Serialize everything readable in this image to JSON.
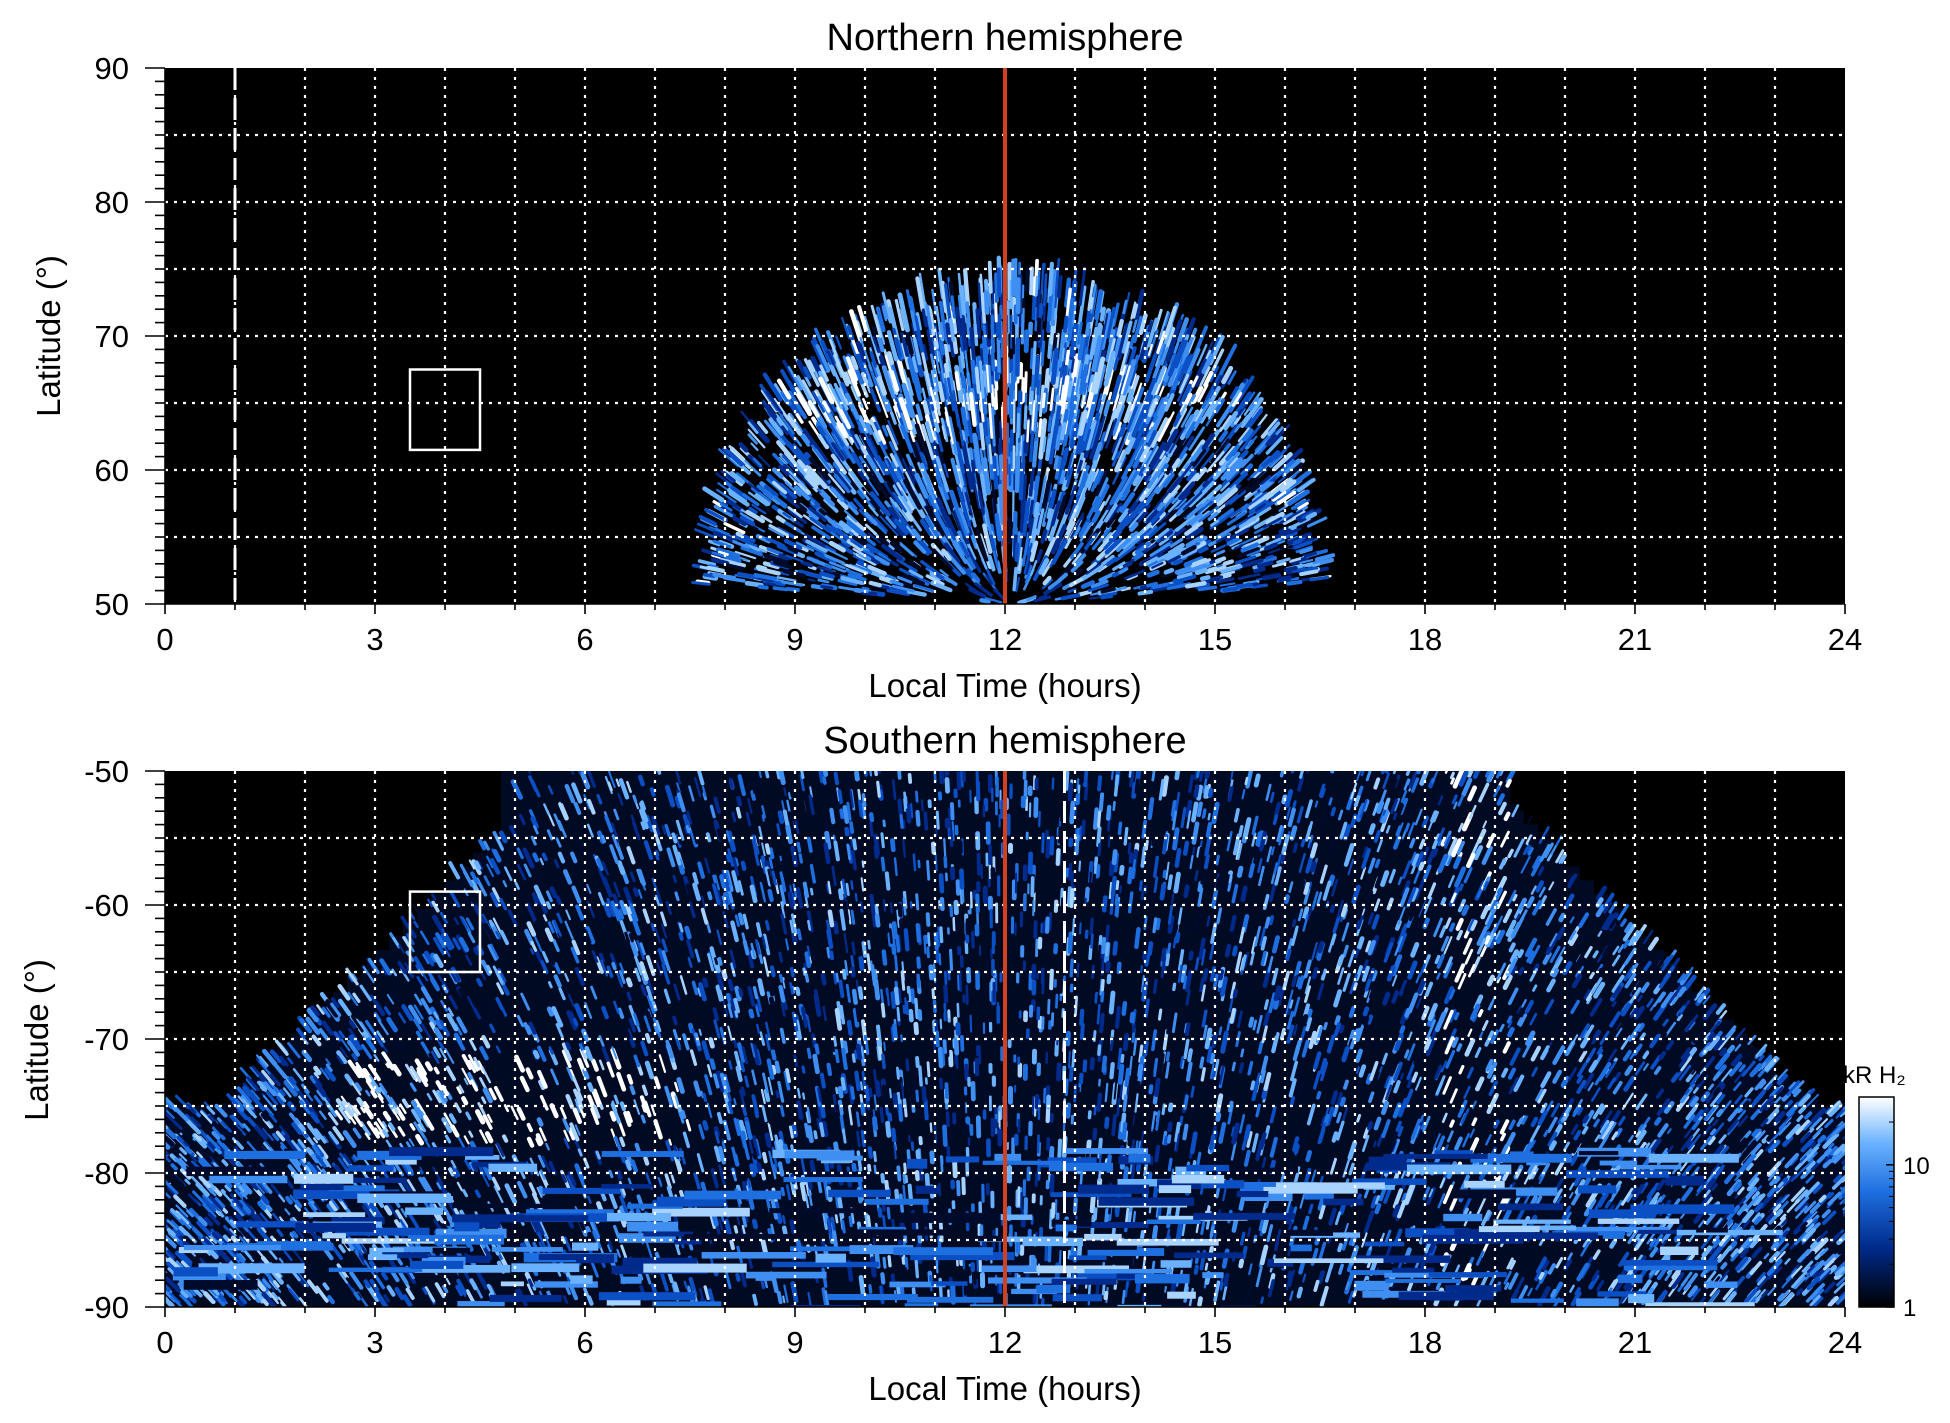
{
  "chart_data": [
    {
      "type": "heatmap",
      "title": "Northern hemisphere",
      "xlabel": "Local Time (hours)",
      "ylabel": "Latitude (°)",
      "xlim": [
        0,
        24
      ],
      "ylim": [
        50,
        90
      ],
      "xticks": [
        0,
        3,
        6,
        9,
        12,
        15,
        18,
        21,
        24
      ],
      "yticks": [
        50,
        60,
        70,
        80,
        90
      ],
      "grid": true,
      "background_color": "#000000",
      "noon_line": {
        "x": 12,
        "color": "#d2401e"
      },
      "dashed_vertical_line": {
        "x": 1,
        "color": "#ffffff"
      },
      "box": {
        "x": [
          3.5,
          4.5
        ],
        "y": [
          61.5,
          67.5
        ]
      },
      "emission_region": {
        "center_x": 12.1,
        "x_range": [
          7.8,
          16.6
        ],
        "lat_edge_at_center": 73.5,
        "bright_band_lat": [
          62,
          67
        ]
      }
    },
    {
      "type": "heatmap",
      "title": "Southern hemisphere",
      "xlabel": "Local Time (hours)",
      "ylabel": "Latitude (°)",
      "xlim": [
        0,
        24
      ],
      "ylim": [
        -90,
        -50
      ],
      "xticks": [
        0,
        3,
        6,
        9,
        12,
        15,
        18,
        21,
        24
      ],
      "yticks": [
        -90,
        -80,
        -70,
        -60,
        -50
      ],
      "grid": true,
      "background_color": "#000000",
      "noon_line": {
        "x": 12,
        "color": "#d2401e"
      },
      "dashed_vertical_line": {
        "x": 12.85,
        "color": "#ffffff"
      },
      "box": {
        "x": [
          3.5,
          4.5
        ],
        "y": [
          -65,
          -59
        ]
      },
      "emission_region": {
        "x_range": [
          0,
          24
        ],
        "upper_x_range": [
          4.9,
          19.5
        ],
        "bright_oval_x": [
          2.5,
          7.5
        ],
        "bright_oval_lat": [
          -78,
          -72
        ]
      },
      "colorbar": {
        "label": "kR H₂",
        "scale": "log",
        "range": [
          1,
          30
        ],
        "ticks": [
          1,
          10
        ],
        "colors": [
          "#000000",
          "#002a8a",
          "#1e6fe0",
          "#6ab2ff",
          "#ffffff"
        ]
      }
    }
  ]
}
